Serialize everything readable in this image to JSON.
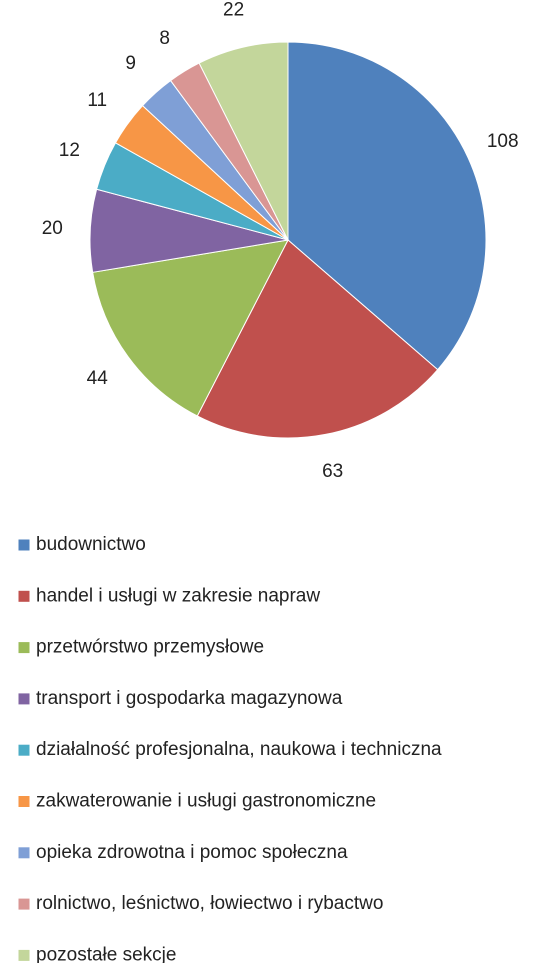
{
  "chart_data": {
    "type": "pie",
    "categories": [
      "budownictwo",
      "handel i usługi w zakresie napraw",
      "przetwórstwo przemysłowe",
      "transport i gospodarka magazynowa",
      "działalność profesjonalna, naukowa i techniczna",
      "zakwaterowanie i usługi gastronomiczne",
      "opieka zdrowotna i pomoc społeczna",
      "rolnictwo, leśnictwo, łowiectwo i rybactwo",
      "pozostałe sekcje"
    ],
    "values": [
      108,
      63,
      44,
      20,
      12,
      11,
      9,
      8,
      22
    ],
    "colors": [
      "#4f81bd",
      "#c0504d",
      "#9bbb59",
      "#8064a2",
      "#4bacc6",
      "#f79646",
      "#7f9fd6",
      "#d99694",
      "#c3d69b"
    ],
    "legend": "bottom"
  }
}
